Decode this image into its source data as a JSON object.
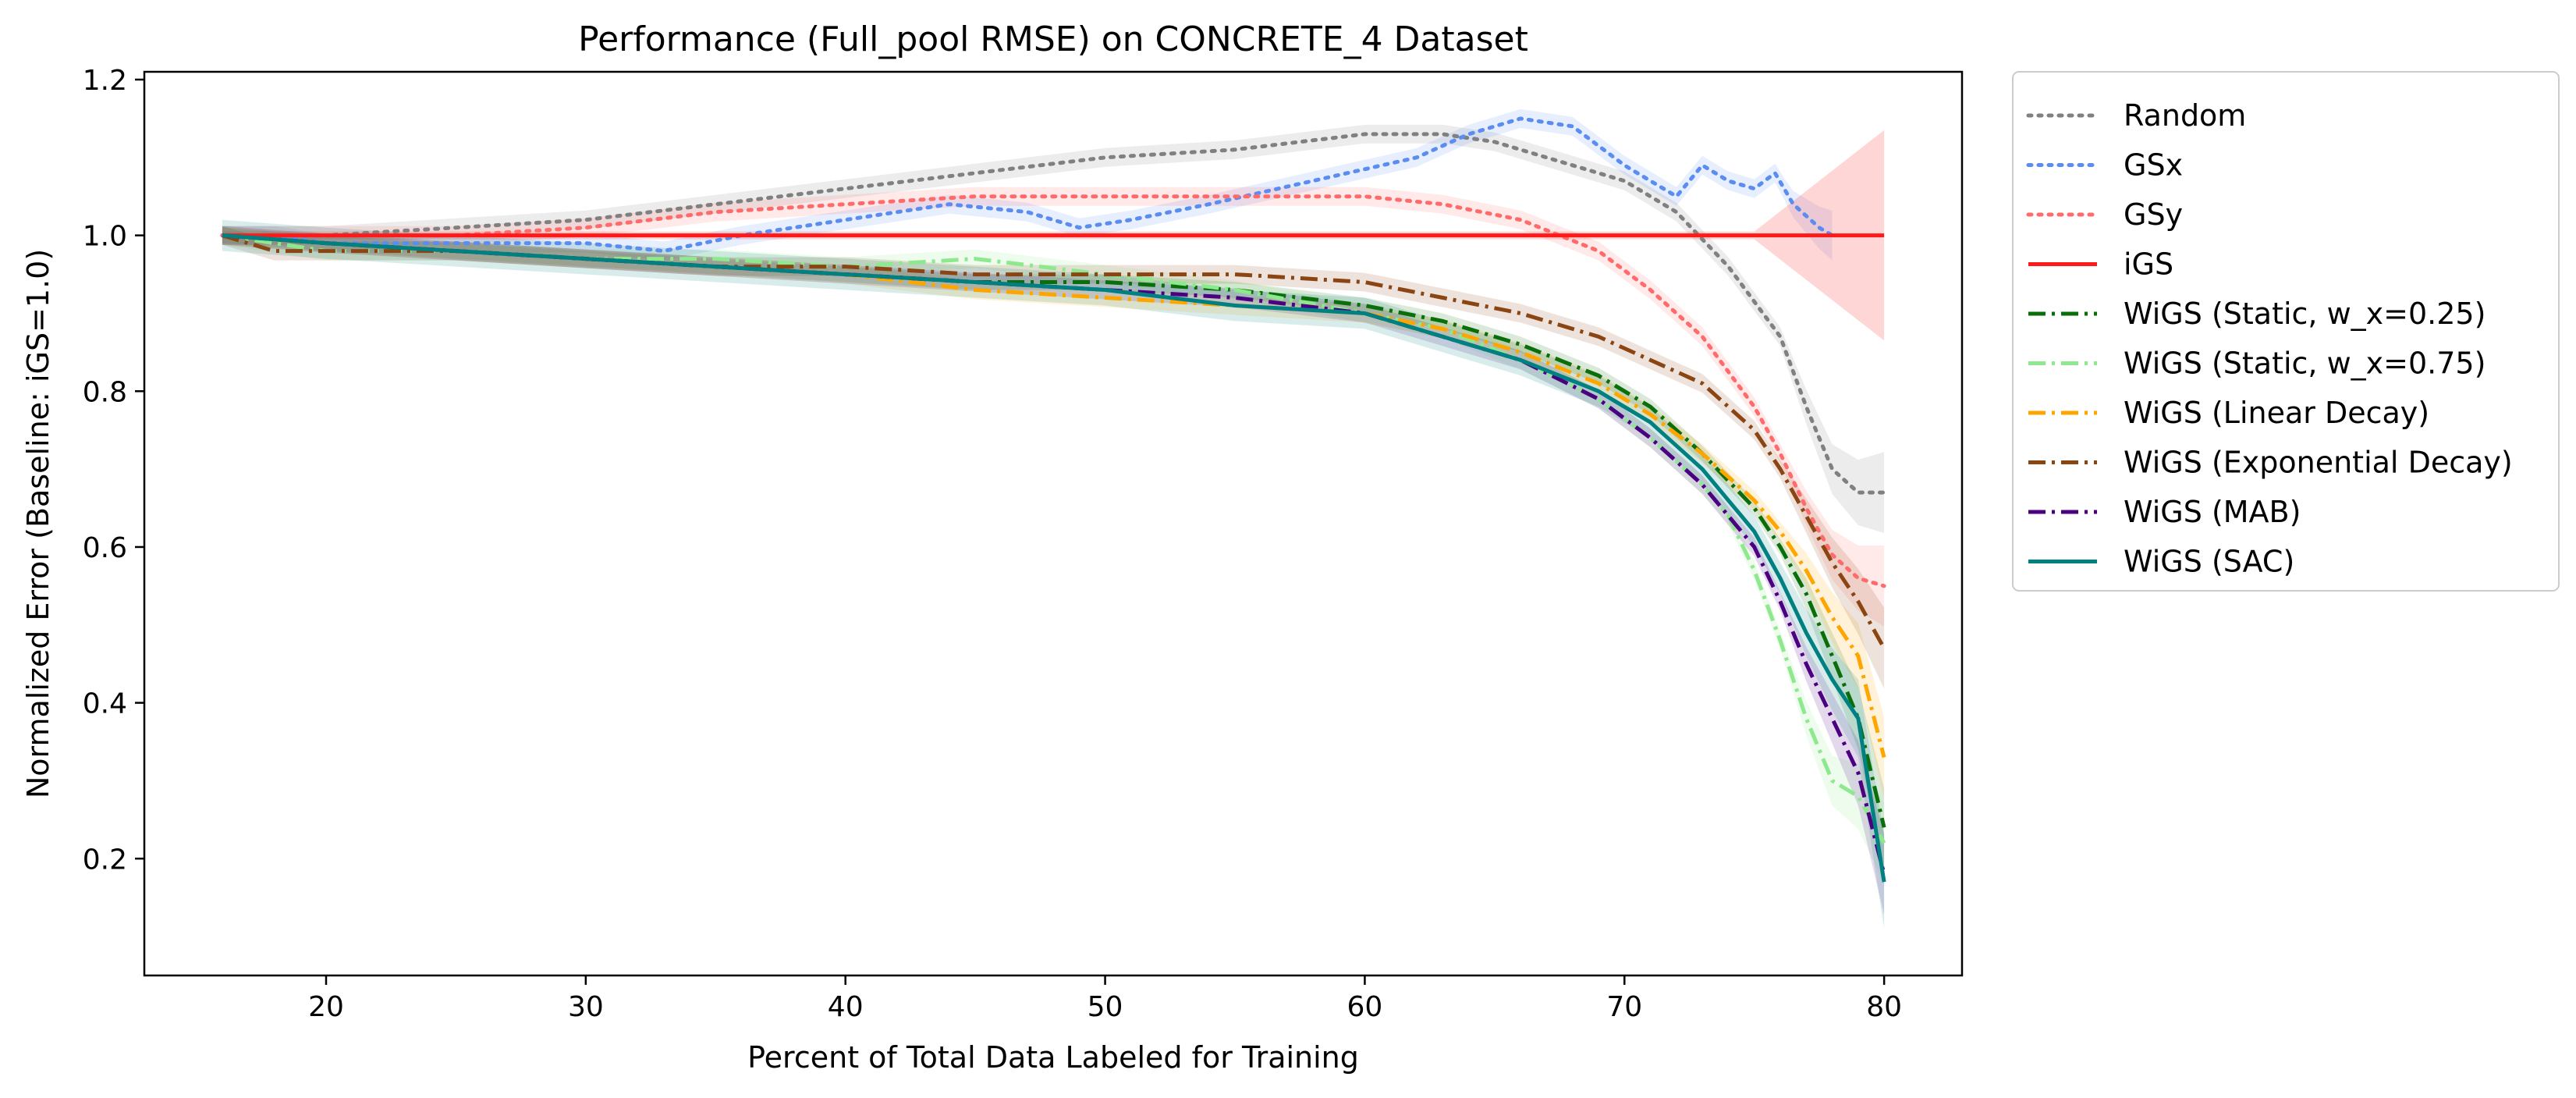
{
  "chart_data": {
    "type": "line",
    "title": "Performance (Full_pool RMSE) on CONCRETE_4 Dataset",
    "xlabel": "Percent of Total Data Labeled for Training",
    "ylabel": "Normalized Error (Baseline: iGS=1.0)",
    "xlim": [
      13,
      83
    ],
    "ylim": [
      0.05,
      1.21
    ],
    "xticks": [
      20,
      30,
      40,
      50,
      60,
      70,
      80
    ],
    "yticks": [
      0.2,
      0.4,
      0.6,
      0.8,
      1.0,
      1.2
    ],
    "xtick_labels": [
      "20",
      "30",
      "40",
      "50",
      "60",
      "70",
      "80"
    ],
    "ytick_labels": [
      "0.2",
      "0.4",
      "0.6",
      "0.8",
      "1.0",
      "1.2"
    ],
    "grid": false,
    "legend_position": "outside-right",
    "series": [
      {
        "name": "Random",
        "color": "#808080",
        "dash": "dotted",
        "band": 0.012,
        "points": [
          [
            16,
            1.0
          ],
          [
            20,
            1.0
          ],
          [
            25,
            1.01
          ],
          [
            30,
            1.02
          ],
          [
            35,
            1.04
          ],
          [
            40,
            1.06
          ],
          [
            45,
            1.08
          ],
          [
            50,
            1.1
          ],
          [
            55,
            1.11
          ],
          [
            60,
            1.13
          ],
          [
            63,
            1.13
          ],
          [
            65,
            1.12
          ],
          [
            68,
            1.09
          ],
          [
            70,
            1.07
          ],
          [
            72,
            1.03
          ],
          [
            74,
            0.96
          ],
          [
            76,
            0.87
          ],
          [
            77,
            0.78
          ],
          [
            78,
            0.7
          ],
          [
            79,
            0.67
          ],
          [
            80,
            0.67
          ]
        ]
      },
      {
        "name": "GSx",
        "color": "#5b8df0",
        "dash": "dotted",
        "band": 0.012,
        "points": [
          [
            16,
            1.0
          ],
          [
            18,
            1.0
          ],
          [
            20,
            0.99
          ],
          [
            25,
            0.99
          ],
          [
            30,
            0.99
          ],
          [
            33,
            0.98
          ],
          [
            36,
            1.0
          ],
          [
            40,
            1.02
          ],
          [
            44,
            1.04
          ],
          [
            47,
            1.03
          ],
          [
            49,
            1.01
          ],
          [
            51,
            1.02
          ],
          [
            54,
            1.04
          ],
          [
            58,
            1.07
          ],
          [
            62,
            1.1
          ],
          [
            64,
            1.13
          ],
          [
            66,
            1.15
          ],
          [
            68,
            1.14
          ],
          [
            70,
            1.09
          ],
          [
            72,
            1.05
          ],
          [
            73,
            1.09
          ],
          [
            74,
            1.07
          ],
          [
            75,
            1.06
          ],
          [
            75.8,
            1.08
          ],
          [
            76.5,
            1.04
          ],
          [
            77.5,
            1.01
          ],
          [
            78,
            1.0
          ]
        ]
      },
      {
        "name": "GSy",
        "color": "#ff6a6a",
        "dash": "dotted",
        "band": 0.012,
        "points": [
          [
            16,
            1.0
          ],
          [
            20,
            1.0
          ],
          [
            25,
            1.0
          ],
          [
            30,
            1.01
          ],
          [
            35,
            1.03
          ],
          [
            40,
            1.04
          ],
          [
            45,
            1.05
          ],
          [
            50,
            1.05
          ],
          [
            55,
            1.05
          ],
          [
            60,
            1.05
          ],
          [
            63,
            1.04
          ],
          [
            66,
            1.02
          ],
          [
            69,
            0.98
          ],
          [
            71,
            0.93
          ],
          [
            73,
            0.87
          ],
          [
            75,
            0.78
          ],
          [
            76,
            0.72
          ],
          [
            77,
            0.65
          ],
          [
            78,
            0.59
          ],
          [
            79,
            0.56
          ],
          [
            80,
            0.55
          ]
        ]
      },
      {
        "name": "iGS",
        "color": "#ff1a1a",
        "dash": "solid",
        "band": 0.005,
        "points": [
          [
            16,
            1.0
          ],
          [
            80,
            1.0
          ]
        ]
      },
      {
        "name": "WiGS (Static, w_x=0.25)",
        "color": "#0a6e0a",
        "dash": "dashdot",
        "band": 0.01,
        "points": [
          [
            16,
            1.0
          ],
          [
            20,
            0.99
          ],
          [
            25,
            0.98
          ],
          [
            30,
            0.97
          ],
          [
            35,
            0.96
          ],
          [
            40,
            0.95
          ],
          [
            45,
            0.94
          ],
          [
            50,
            0.94
          ],
          [
            55,
            0.93
          ],
          [
            60,
            0.91
          ],
          [
            63,
            0.89
          ],
          [
            66,
            0.86
          ],
          [
            69,
            0.82
          ],
          [
            71,
            0.78
          ],
          [
            73,
            0.72
          ],
          [
            75,
            0.65
          ],
          [
            76,
            0.6
          ],
          [
            77,
            0.54
          ],
          [
            78,
            0.46
          ],
          [
            79,
            0.38
          ],
          [
            80,
            0.24
          ]
        ]
      },
      {
        "name": "WiGS (Static, w_x=0.75)",
        "color": "#8ee88e",
        "dash": "dashdot",
        "band": 0.012,
        "points": [
          [
            16,
            1.0
          ],
          [
            20,
            0.98
          ],
          [
            25,
            0.98
          ],
          [
            30,
            0.97
          ],
          [
            35,
            0.97
          ],
          [
            40,
            0.96
          ],
          [
            45,
            0.97
          ],
          [
            50,
            0.95
          ],
          [
            55,
            0.93
          ],
          [
            60,
            0.9
          ],
          [
            63,
            0.88
          ],
          [
            66,
            0.84
          ],
          [
            69,
            0.79
          ],
          [
            71,
            0.74
          ],
          [
            73,
            0.68
          ],
          [
            74,
            0.64
          ],
          [
            75,
            0.57
          ],
          [
            76,
            0.48
          ],
          [
            77,
            0.38
          ],
          [
            78,
            0.3
          ],
          [
            79,
            0.28
          ],
          [
            80,
            0.22
          ]
        ]
      },
      {
        "name": "WiGS (Linear Decay)",
        "color": "#ffa500",
        "dash": "dashdot",
        "band": 0.012,
        "points": [
          [
            16,
            1.0
          ],
          [
            20,
            0.99
          ],
          [
            25,
            0.98
          ],
          [
            30,
            0.97
          ],
          [
            35,
            0.96
          ],
          [
            40,
            0.95
          ],
          [
            45,
            0.93
          ],
          [
            50,
            0.92
          ],
          [
            55,
            0.91
          ],
          [
            60,
            0.9
          ],
          [
            63,
            0.88
          ],
          [
            66,
            0.85
          ],
          [
            69,
            0.81
          ],
          [
            71,
            0.77
          ],
          [
            73,
            0.72
          ],
          [
            75,
            0.66
          ],
          [
            76,
            0.62
          ],
          [
            77,
            0.57
          ],
          [
            78,
            0.51
          ],
          [
            79,
            0.46
          ],
          [
            80,
            0.33
          ]
        ]
      },
      {
        "name": "WiGS (Exponential Decay)",
        "color": "#8b4513",
        "dash": "dashdot",
        "band": 0.012,
        "points": [
          [
            16,
            1.0
          ],
          [
            18,
            0.98
          ],
          [
            20,
            0.98
          ],
          [
            25,
            0.98
          ],
          [
            30,
            0.97
          ],
          [
            35,
            0.96
          ],
          [
            40,
            0.96
          ],
          [
            45,
            0.95
          ],
          [
            50,
            0.95
          ],
          [
            55,
            0.95
          ],
          [
            60,
            0.94
          ],
          [
            63,
            0.92
          ],
          [
            66,
            0.9
          ],
          [
            69,
            0.87
          ],
          [
            71,
            0.84
          ],
          [
            73,
            0.81
          ],
          [
            75,
            0.75
          ],
          [
            76,
            0.7
          ],
          [
            77,
            0.64
          ],
          [
            78,
            0.58
          ],
          [
            79,
            0.53
          ],
          [
            80,
            0.47
          ]
        ]
      },
      {
        "name": "WiGS (MAB)",
        "color": "#4b0082",
        "dash": "dashdot",
        "band": 0.012,
        "points": [
          [
            16,
            1.0
          ],
          [
            20,
            0.99
          ],
          [
            25,
            0.98
          ],
          [
            30,
            0.97
          ],
          [
            35,
            0.96
          ],
          [
            40,
            0.95
          ],
          [
            45,
            0.94
          ],
          [
            50,
            0.93
          ],
          [
            55,
            0.92
          ],
          [
            60,
            0.9
          ],
          [
            63,
            0.87
          ],
          [
            66,
            0.84
          ],
          [
            69,
            0.79
          ],
          [
            71,
            0.74
          ],
          [
            73,
            0.68
          ],
          [
            75,
            0.6
          ],
          [
            76,
            0.53
          ],
          [
            77,
            0.45
          ],
          [
            78,
            0.38
          ],
          [
            79,
            0.31
          ],
          [
            80,
            0.18
          ]
        ]
      },
      {
        "name": "WiGS (SAC)",
        "color": "#008080",
        "dash": "solid",
        "band": 0.02,
        "points": [
          [
            16,
            1.0
          ],
          [
            20,
            0.99
          ],
          [
            25,
            0.98
          ],
          [
            30,
            0.97
          ],
          [
            35,
            0.96
          ],
          [
            40,
            0.95
          ],
          [
            45,
            0.94
          ],
          [
            50,
            0.93
          ],
          [
            55,
            0.91
          ],
          [
            60,
            0.9
          ],
          [
            63,
            0.87
          ],
          [
            66,
            0.84
          ],
          [
            69,
            0.8
          ],
          [
            71,
            0.76
          ],
          [
            73,
            0.7
          ],
          [
            75,
            0.62
          ],
          [
            76,
            0.56
          ],
          [
            77,
            0.49
          ],
          [
            78,
            0.43
          ],
          [
            79,
            0.38
          ],
          [
            80,
            0.17
          ]
        ]
      }
    ]
  }
}
